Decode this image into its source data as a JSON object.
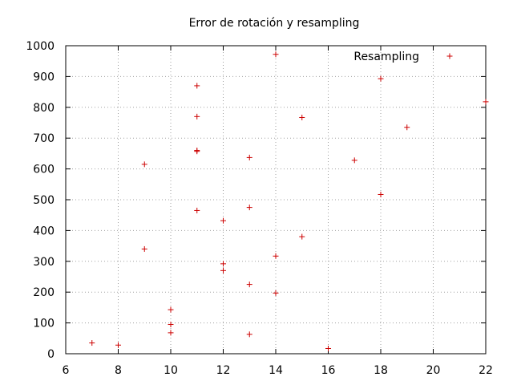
{
  "chart_data": {
    "type": "scatter",
    "title": "Error de rotación y resampling",
    "xlabel": "",
    "ylabel": "",
    "xlim": [
      6,
      22
    ],
    "ylim": [
      0,
      1000
    ],
    "x_ticks": [
      6,
      8,
      10,
      12,
      14,
      16,
      18,
      20,
      22
    ],
    "y_ticks": [
      0,
      100,
      200,
      300,
      400,
      500,
      600,
      700,
      800,
      900,
      1000
    ],
    "grid": true,
    "legend_position": "top-right",
    "marker": "+",
    "color": "#cc0000",
    "series": [
      {
        "name": "Resampling",
        "points": [
          [
            7,
            35
          ],
          [
            8,
            28
          ],
          [
            9,
            615
          ],
          [
            9,
            340
          ],
          [
            10,
            143
          ],
          [
            10,
            95
          ],
          [
            10,
            68
          ],
          [
            11,
            870
          ],
          [
            11,
            770
          ],
          [
            11,
            660
          ],
          [
            11,
            657
          ],
          [
            11,
            465
          ],
          [
            12,
            432
          ],
          [
            12,
            292
          ],
          [
            12,
            270
          ],
          [
            13,
            637
          ],
          [
            13,
            475
          ],
          [
            13,
            225
          ],
          [
            13,
            63
          ],
          [
            14,
            972
          ],
          [
            14,
            317
          ],
          [
            14,
            197
          ],
          [
            15,
            767
          ],
          [
            15,
            380
          ],
          [
            16,
            17
          ],
          [
            17,
            628
          ],
          [
            18,
            893
          ],
          [
            18,
            517
          ],
          [
            19,
            735
          ],
          [
            22,
            818
          ]
        ]
      }
    ]
  }
}
